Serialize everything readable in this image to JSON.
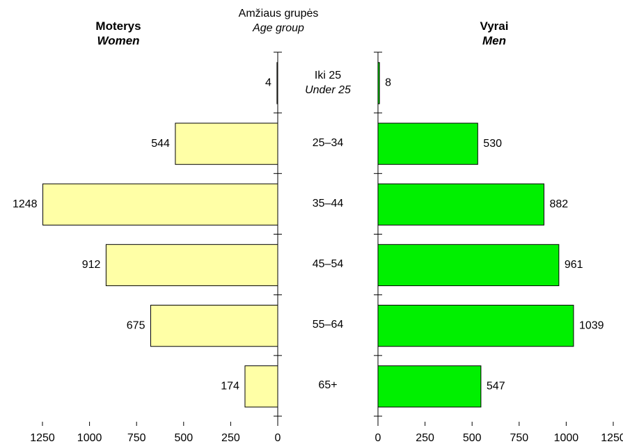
{
  "chart_data": {
    "type": "bar",
    "orientation": "horizontal",
    "title": "Amžiaus grupės\nAge group",
    "categories": [
      "Iki 25\nUnder 25",
      "25–34",
      "35–44",
      "45–54",
      "55–64",
      "65+"
    ],
    "series": [
      {
        "name": "Moterys\nWomen",
        "color": "#ffffa6",
        "values": [
          4,
          544,
          1248,
          912,
          675,
          174
        ]
      },
      {
        "name": "Vyrai\nMen",
        "color": "#00f000",
        "values": [
          8,
          530,
          882,
          961,
          1039,
          547
        ]
      }
    ],
    "xlim": [
      0,
      1250
    ],
    "xticks": [
      0,
      250,
      500,
      750,
      1000,
      1250
    ]
  }
}
